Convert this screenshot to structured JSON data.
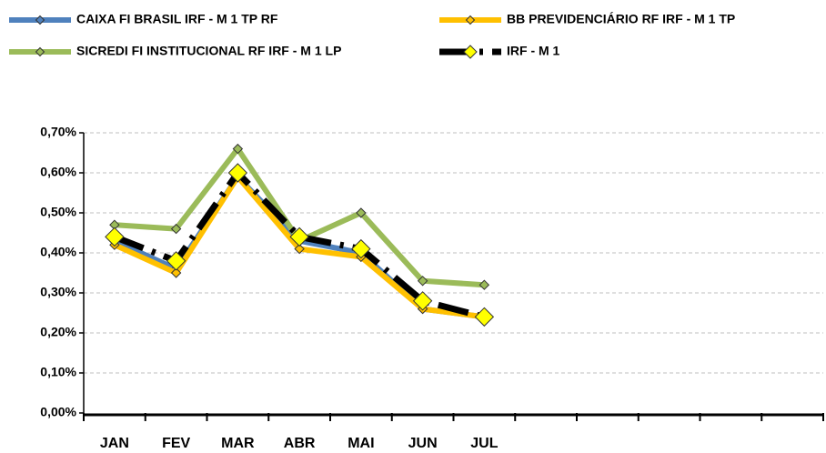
{
  "chart_data": {
    "type": "line",
    "categories": [
      "JAN",
      "FEV",
      "MAR",
      "ABR",
      "MAI",
      "JUN",
      "JUL",
      null,
      null,
      null,
      null,
      null
    ],
    "series": [
      {
        "name": "CAIXA FI BRASIL IRF - M 1 TP RF",
        "color": "#4f81bd",
        "marker_color": "#4f81bd",
        "values": [
          0.43,
          0.36,
          0.59,
          0.43,
          0.4,
          0.26,
          0.24,
          null,
          null,
          null,
          null,
          null
        ]
      },
      {
        "name": "BB PREVIDENCIÁRIO RF IRF - M 1 TP",
        "color": "#ffc000",
        "marker_color": "#ffc000",
        "values": [
          0.42,
          0.35,
          0.59,
          0.41,
          0.39,
          0.26,
          0.24,
          null,
          null,
          null,
          null,
          null
        ]
      },
      {
        "name": "SICREDI FI INSTITUCIONAL RF IRF - M 1 LP",
        "color": "#9bbb59",
        "marker_color": "#9bbb59",
        "values": [
          0.47,
          0.46,
          0.66,
          0.43,
          0.5,
          0.33,
          0.32,
          null,
          null,
          null,
          null,
          null
        ]
      },
      {
        "name": "IRF - M 1",
        "color": "#000000",
        "marker_color": "#ffff00",
        "dashed": true,
        "values": [
          0.44,
          0.38,
          0.6,
          0.44,
          0.41,
          0.28,
          0.24,
          null,
          null,
          null,
          null,
          null
        ]
      }
    ],
    "ylim": [
      0,
      0.7
    ],
    "yticks": [
      {
        "value": 0,
        "label": "0,00%"
      },
      {
        "value": 0.1,
        "label": "0,10%"
      },
      {
        "value": 0.2,
        "label": "0,20%"
      },
      {
        "value": 0.3,
        "label": "0,30%"
      },
      {
        "value": 0.4,
        "label": "0,40%"
      },
      {
        "value": 0.5,
        "label": "0,50%"
      },
      {
        "value": 0.6,
        "label": "0,60%"
      },
      {
        "value": 0.7,
        "label": "0,70%"
      }
    ],
    "grid": true,
    "legend": "top"
  }
}
